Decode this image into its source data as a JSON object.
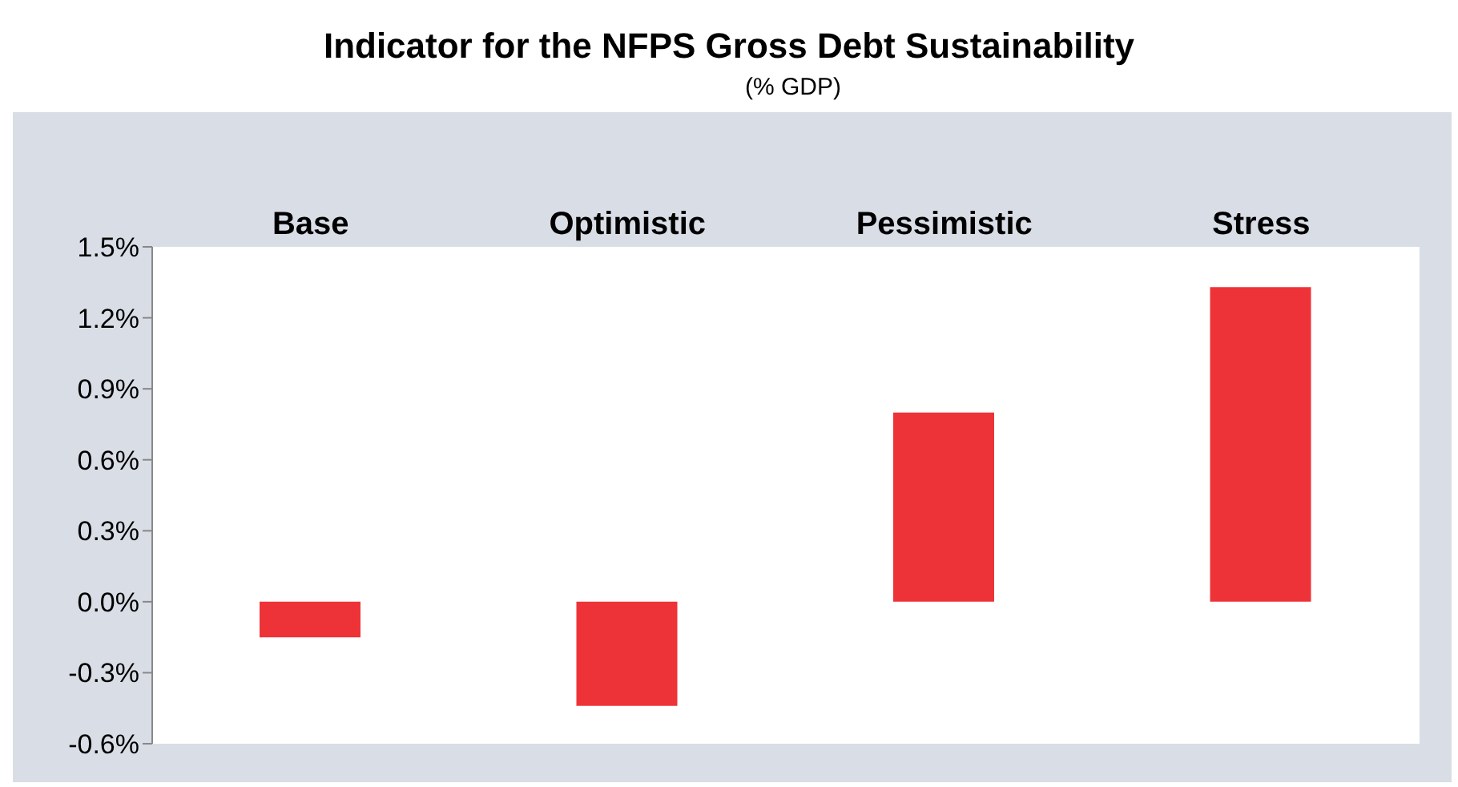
{
  "chart_data": {
    "type": "bar",
    "title": "Indicator for the NFPS Gross Debt Sustainability",
    "subtitle": "(% GDP)",
    "categories": [
      "Base",
      "Optimistic",
      "Pessimistic",
      "Stress"
    ],
    "values": [
      -0.15,
      -0.44,
      0.8,
      1.33
    ],
    "color": "#ee3338",
    "ylim": [
      -0.6,
      1.5
    ],
    "yticks": [
      {
        "value": -0.6,
        "label": "-0.6%"
      },
      {
        "value": -0.3,
        "label": "-0.3%"
      },
      {
        "value": 0,
        "label": "0.0%"
      },
      {
        "value": 0.3,
        "label": "0.3%"
      },
      {
        "value": 0.6,
        "label": "0.6%"
      },
      {
        "value": 0.9,
        "label": "0.9%"
      },
      {
        "value": 1.2,
        "label": "1.2%"
      },
      {
        "value": 1.5,
        "label": "1.5%"
      }
    ],
    "grid": false,
    "legend": false
  }
}
